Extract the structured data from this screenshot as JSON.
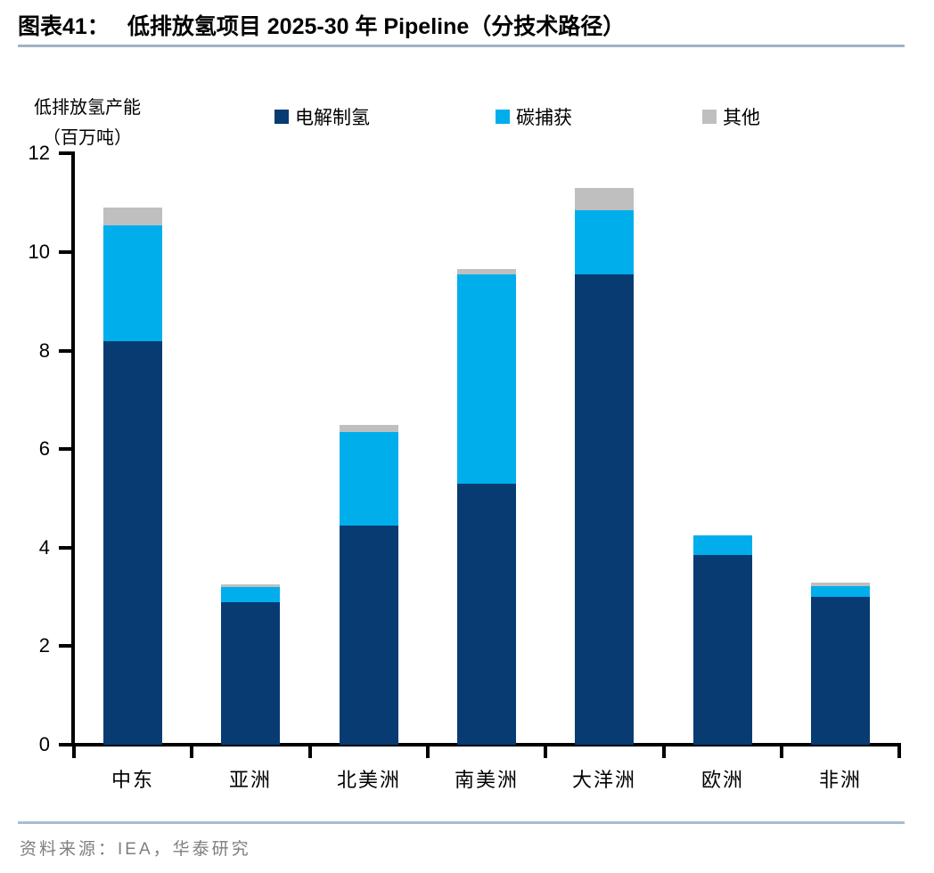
{
  "header": {
    "title_prefix": "图表41：",
    "title": "低排放氢项目 2025-30 年 Pipeline（分技术路径）"
  },
  "chart_data": {
    "type": "bar",
    "stacked": true,
    "title": "低排放氢项目 2025-30 年 Pipeline（分技术路径）",
    "ylabel_line1": "低排放氢产能",
    "ylabel_line2": "（百万吨）",
    "xlabel": "",
    "categories": [
      "中东",
      "亚洲",
      "北美洲",
      "南美洲",
      "大洋洲",
      "欧洲",
      "非洲"
    ],
    "series": [
      {
        "name": "电解制氢",
        "color": "#073B72",
        "values": [
          8.2,
          2.9,
          4.45,
          5.3,
          9.55,
          3.85,
          3.0
        ]
      },
      {
        "name": "碳捕获",
        "color": "#00AEEC",
        "values": [
          2.35,
          0.3,
          1.9,
          4.25,
          1.3,
          0.4,
          0.22
        ]
      },
      {
        "name": "其他",
        "color": "#BFBFBF",
        "values": [
          0.35,
          0.05,
          0.15,
          0.1,
          0.45,
          0.0,
          0.08
        ]
      }
    ],
    "totals": [
      10.9,
      3.25,
      6.5,
      9.65,
      11.3,
      4.25,
      3.3
    ],
    "ylim": [
      0,
      12
    ],
    "ytick_step": 2,
    "yticks": [
      0,
      2,
      4,
      6,
      8,
      10,
      12
    ],
    "grid": false,
    "legend_position": "top",
    "axis_color": "#000000"
  },
  "footer": {
    "source": "资料来源：IEA，华泰研究"
  }
}
